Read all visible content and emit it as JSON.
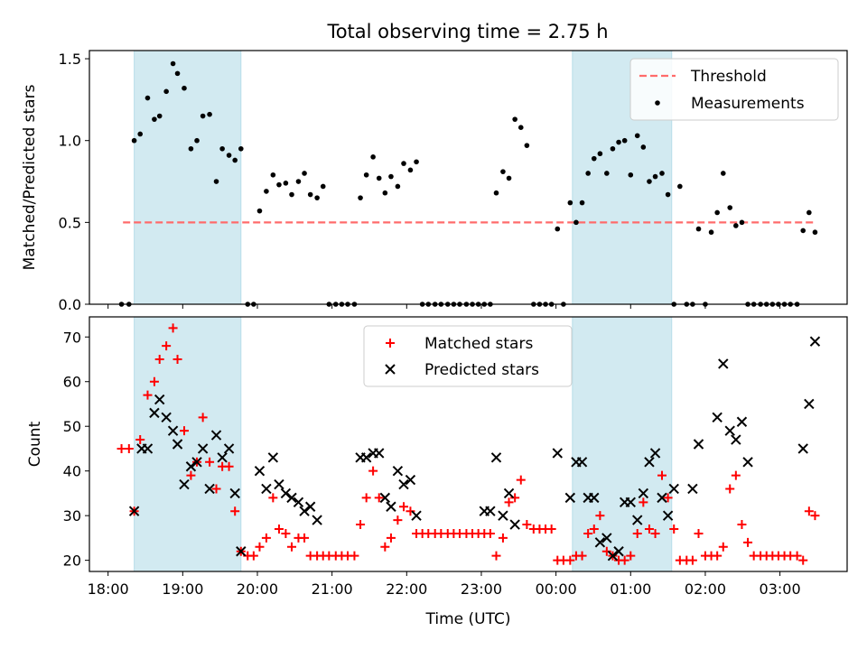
{
  "figure": {
    "title": "Total observing time = 2.75 h"
  },
  "chart_data": [
    {
      "type": "scatter",
      "panel": "top",
      "ylabel": "Matched/Predicted stars",
      "xlabel": "",
      "xlim": [
        -0.25,
        9.9
      ],
      "ylim": [
        0,
        1.55
      ],
      "yticks": [
        0.0,
        0.5,
        1.0,
        1.5
      ],
      "ytick_labels": [
        "0.0",
        "0.5",
        "1.0",
        "1.5"
      ],
      "shaded_spans": [
        [
          0.35,
          1.78
        ],
        [
          6.22,
          7.55
        ]
      ],
      "legend": {
        "position": "upper right",
        "entries": [
          "Threshold",
          "Measurements"
        ]
      },
      "threshold": {
        "name": "Threshold",
        "value": 0.5,
        "x_range": [
          0.2,
          9.45
        ],
        "color": "#ff6b6b",
        "style": "dashed"
      },
      "series": [
        {
          "name": "Measurements",
          "color": "#000000",
          "marker": "dot",
          "x": [
            0.18,
            0.28,
            0.35,
            0.43,
            0.53,
            0.62,
            0.69,
            0.78,
            0.87,
            0.93,
            1.02,
            1.11,
            1.19,
            1.27,
            1.36,
            1.45,
            1.53,
            1.62,
            1.7,
            1.78,
            1.87,
            1.95,
            2.03,
            2.12,
            2.21,
            2.29,
            2.38,
            2.46,
            2.55,
            2.63,
            2.71,
            2.8,
            2.88,
            2.96,
            3.05,
            3.13,
            3.21,
            3.3,
            3.38,
            3.46,
            3.55,
            3.63,
            3.71,
            3.79,
            3.88,
            3.96,
            4.05,
            4.13,
            4.21,
            4.29,
            4.38,
            4.46,
            4.55,
            4.63,
            4.71,
            4.8,
            4.88,
            4.96,
            5.04,
            5.12,
            5.2,
            5.29,
            5.37,
            5.45,
            5.53,
            5.61,
            5.7,
            5.78,
            5.86,
            5.94,
            6.02,
            6.1,
            6.19,
            6.27,
            6.35,
            6.43,
            6.51,
            6.59,
            6.68,
            6.76,
            6.84,
            6.92,
            7.0,
            7.09,
            7.17,
            7.25,
            7.33,
            7.42,
            7.5,
            7.58,
            7.66,
            7.75,
            7.83,
            7.91,
            8.0,
            8.08,
            8.16,
            8.24,
            8.33,
            8.41,
            8.49,
            8.57,
            8.65,
            8.74,
            8.82,
            8.9,
            8.98,
            9.06,
            9.14,
            9.23,
            9.31,
            9.39,
            9.47
          ],
          "y": [
            0.0,
            0.0,
            1.0,
            1.04,
            1.26,
            1.13,
            1.15,
            1.3,
            1.47,
            1.41,
            1.32,
            0.95,
            1.0,
            1.15,
            1.16,
            0.75,
            0.95,
            0.91,
            0.88,
            0.95,
            0.0,
            0.0,
            0.57,
            0.69,
            0.79,
            0.73,
            0.74,
            0.67,
            0.75,
            0.8,
            0.67,
            0.65,
            0.72,
            0.0,
            0.0,
            0.0,
            0.0,
            0.0,
            0.65,
            0.79,
            0.9,
            0.77,
            0.68,
            0.78,
            0.72,
            0.86,
            0.82,
            0.87,
            0.0,
            0.0,
            0.0,
            0.0,
            0.0,
            0.0,
            0.0,
            0.0,
            0.0,
            0.0,
            0.0,
            0.0,
            0.68,
            0.81,
            0.77,
            1.13,
            1.08,
            0.97,
            0.0,
            0.0,
            0.0,
            0.0,
            0.46,
            0.0,
            0.62,
            0.5,
            0.62,
            0.8,
            0.89,
            0.92,
            0.8,
            0.95,
            0.99,
            1.0,
            0.79,
            1.03,
            0.96,
            0.75,
            0.78,
            0.8,
            0.67,
            0.0,
            0.72,
            0.0,
            0.0,
            0.46,
            0.0,
            0.44,
            0.56,
            0.8,
            0.59,
            0.48,
            0.5,
            0.0,
            0.0,
            0.0,
            0.0,
            0.0,
            0.0,
            0.0,
            0.0,
            0.0,
            0.45,
            0.56,
            0.44
          ]
        }
      ]
    },
    {
      "type": "scatter",
      "panel": "bottom",
      "xlabel": "Time (UTC)",
      "ylabel": "Count",
      "xlim": [
        -0.25,
        9.9
      ],
      "ylim": [
        17.5,
        74.5
      ],
      "xticks": [
        0,
        1,
        2,
        3,
        4,
        5,
        6,
        7,
        8,
        9
      ],
      "xtick_labels": [
        "18:00",
        "19:00",
        "20:00",
        "21:00",
        "22:00",
        "23:00",
        "00:00",
        "01:00",
        "02:00",
        "03:00"
      ],
      "yticks": [
        20,
        30,
        40,
        50,
        60,
        70
      ],
      "ytick_labels": [
        "20",
        "30",
        "40",
        "50",
        "60",
        "70"
      ],
      "shaded_spans": [
        [
          0.35,
          1.78
        ],
        [
          6.22,
          7.55
        ]
      ],
      "legend": {
        "position": "upper center",
        "entries": [
          "Matched stars",
          "Predicted stars"
        ]
      },
      "series": [
        {
          "name": "Matched stars",
          "color": "#ff0000",
          "marker": "plus",
          "x": [
            0.18,
            0.28,
            0.35,
            0.43,
            0.53,
            0.62,
            0.69,
            0.78,
            0.87,
            0.93,
            1.02,
            1.11,
            1.19,
            1.27,
            1.36,
            1.45,
            1.53,
            1.62,
            1.7,
            1.78,
            1.87,
            1.95,
            2.03,
            2.12,
            2.21,
            2.29,
            2.38,
            2.46,
            2.55,
            2.63,
            2.71,
            2.8,
            2.88,
            2.96,
            3.05,
            3.13,
            3.21,
            3.3,
            3.38,
            3.46,
            3.55,
            3.63,
            3.71,
            3.79,
            3.88,
            3.96,
            4.05,
            4.13,
            4.21,
            4.29,
            4.38,
            4.46,
            4.55,
            4.63,
            4.71,
            4.8,
            4.88,
            4.96,
            5.04,
            5.12,
            5.2,
            5.29,
            5.37,
            5.45,
            5.53,
            5.61,
            5.7,
            5.78,
            5.86,
            5.94,
            6.02,
            6.1,
            6.19,
            6.27,
            6.35,
            6.43,
            6.51,
            6.59,
            6.68,
            6.76,
            6.84,
            6.92,
            7.0,
            7.09,
            7.17,
            7.25,
            7.33,
            7.42,
            7.5,
            7.58,
            7.66,
            7.75,
            7.83,
            7.91,
            8.0,
            8.08,
            8.16,
            8.24,
            8.33,
            8.41,
            8.49,
            8.57,
            8.65,
            8.74,
            8.82,
            8.9,
            8.98,
            9.06,
            9.14,
            9.23,
            9.31,
            9.39,
            9.47
          ],
          "y": [
            45,
            45,
            31,
            47,
            57,
            60,
            65,
            68,
            72,
            65,
            49,
            39,
            42,
            52,
            42,
            36,
            41,
            41,
            31,
            22,
            21,
            21,
            23,
            25,
            34,
            27,
            26,
            23,
            25,
            25,
            21,
            21,
            21,
            21,
            21,
            21,
            21,
            21,
            28,
            34,
            40,
            34,
            23,
            25,
            29,
            32,
            31,
            26,
            26,
            26,
            26,
            26,
            26,
            26,
            26,
            26,
            26,
            26,
            26,
            26,
            21,
            25,
            33,
            34,
            38,
            28,
            27,
            27,
            27,
            27,
            20,
            20,
            20,
            21,
            21,
            26,
            27,
            30,
            22,
            21,
            20,
            20,
            21,
            26,
            33,
            27,
            26,
            39,
            34,
            27,
            20,
            20,
            20,
            26,
            21,
            21,
            21,
            23,
            36,
            39,
            28,
            24,
            21,
            21,
            21,
            21,
            21,
            21,
            21,
            21,
            20,
            31,
            30
          ]
        },
        {
          "name": "Predicted stars",
          "color": "#000000",
          "marker": "x",
          "x": [
            0.35,
            0.45,
            0.53,
            0.62,
            0.69,
            0.78,
            0.87,
            0.93,
            1.02,
            1.11,
            1.19,
            1.27,
            1.36,
            1.45,
            1.53,
            1.62,
            1.7,
            1.78,
            2.03,
            2.12,
            2.21,
            2.29,
            2.38,
            2.46,
            2.55,
            2.63,
            2.71,
            2.8,
            3.38,
            3.46,
            3.55,
            3.63,
            3.71,
            3.79,
            3.88,
            3.96,
            4.05,
            4.13,
            5.04,
            5.12,
            5.2,
            5.29,
            5.37,
            5.45,
            6.02,
            6.19,
            6.27,
            6.35,
            6.43,
            6.51,
            6.59,
            6.68,
            6.76,
            6.84,
            6.92,
            7.0,
            7.09,
            7.17,
            7.25,
            7.33,
            7.42,
            7.5,
            7.58,
            7.83,
            7.91,
            8.16,
            8.24,
            8.33,
            8.41,
            8.49,
            8.57,
            9.31,
            9.39,
            9.47
          ],
          "y": [
            31,
            45,
            45,
            53,
            56,
            52,
            49,
            46,
            37,
            41,
            42,
            45,
            36,
            48,
            43,
            45,
            35,
            22,
            40,
            36,
            43,
            37,
            35,
            34,
            33,
            31,
            32,
            29,
            43,
            43,
            44,
            44,
            34,
            32,
            40,
            37,
            38,
            30,
            31,
            31,
            43,
            30,
            35,
            28,
            44,
            34,
            42,
            42,
            34,
            34,
            24,
            25,
            21,
            22,
            33,
            33,
            29,
            35,
            42,
            44,
            34,
            30,
            36,
            36,
            46,
            52,
            64,
            49,
            47,
            51,
            42,
            45,
            55,
            69
          ]
        }
      ]
    }
  ]
}
